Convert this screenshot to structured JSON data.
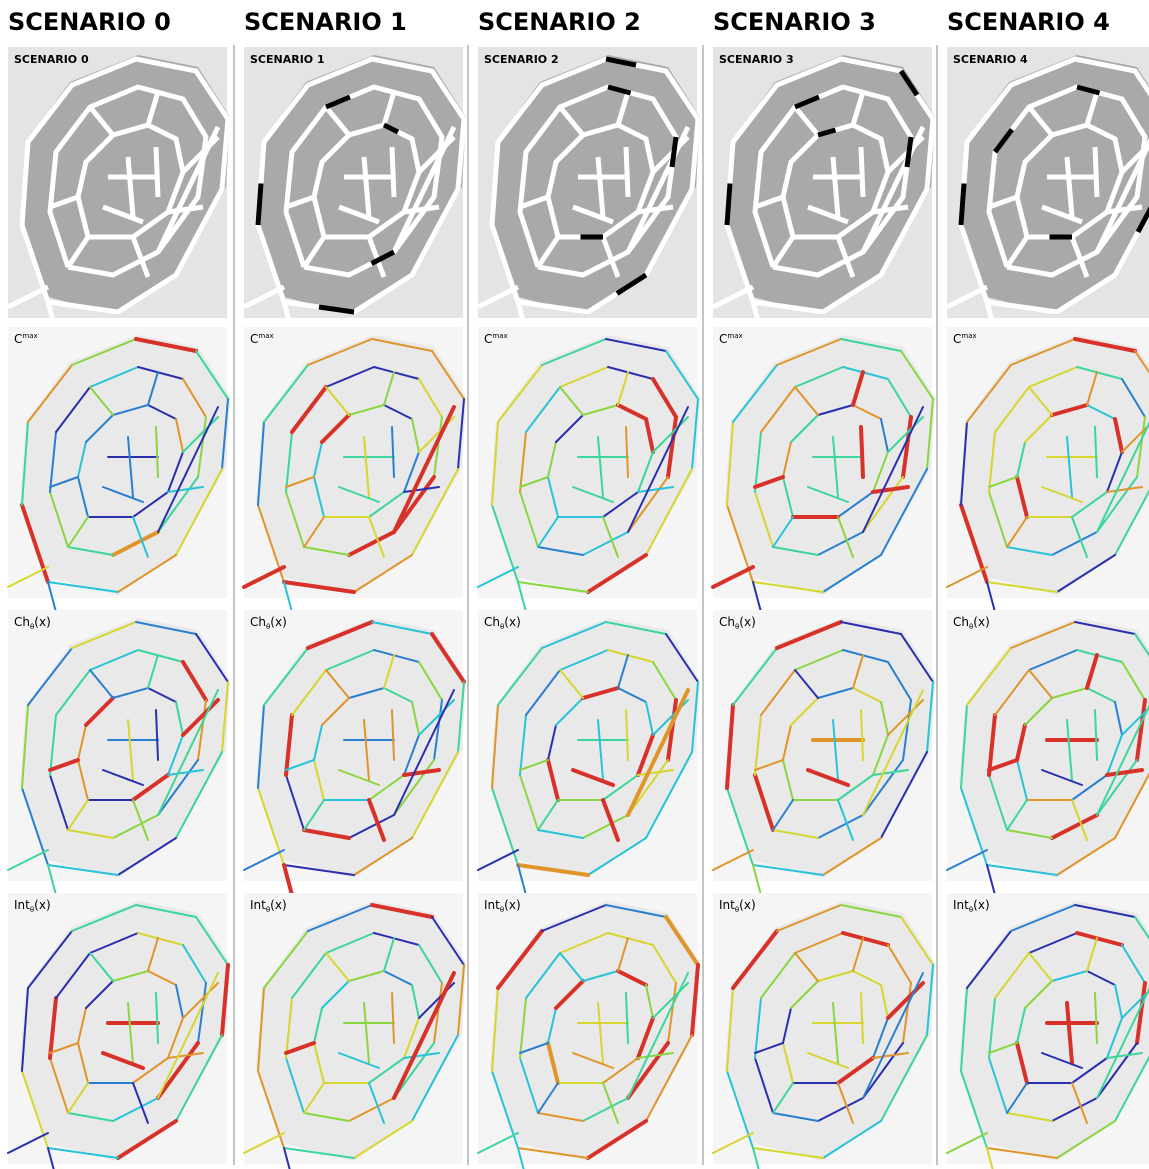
{
  "columns": [
    {
      "heading": "SCENARIO 0",
      "map_label": "SCENARIO 0"
    },
    {
      "heading": "SCENARIO 1",
      "map_label": "SCENARIO 1"
    },
    {
      "heading": "SCENARIO 2",
      "map_label": "SCENARIO 2"
    },
    {
      "heading": "SCENARIO 3",
      "map_label": "SCENARIO 3"
    },
    {
      "heading": "SCENARIO 4",
      "map_label": "SCENARIO 4"
    }
  ],
  "row_labels": [
    {
      "base": "C",
      "sup": "max"
    },
    {
      "base": "Ch",
      "sub": "θ",
      "suffix": "(x)"
    },
    {
      "base": "Int",
      "sub": "θ",
      "suffix": "(x)"
    }
  ]
}
